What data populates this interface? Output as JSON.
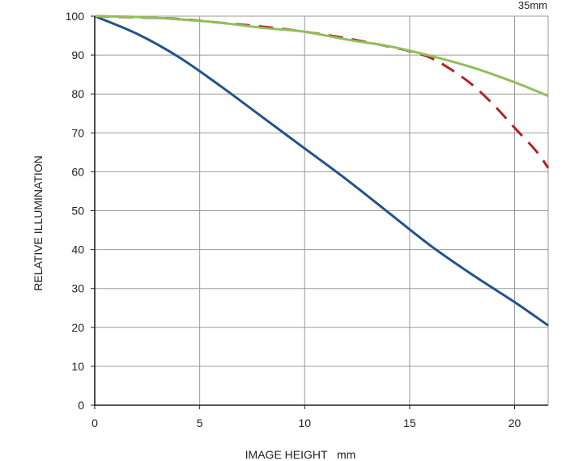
{
  "chart_data": {
    "type": "line",
    "title": "",
    "corner_label": "35mm",
    "xlabel": "IMAGE HEIGHT   mm",
    "ylabel": "RELATIVE ILLUMINATION",
    "xlim": [
      0,
      21.6
    ],
    "ylim": [
      0,
      100
    ],
    "xticks": [
      0,
      5,
      10,
      15,
      20
    ],
    "yticks": [
      0,
      10,
      20,
      30,
      40,
      50,
      60,
      70,
      80,
      90,
      100
    ],
    "grid": true,
    "legend": "none",
    "series": [
      {
        "color": "#23538a",
        "style": "solid",
        "x": [
          0,
          2,
          4,
          6,
          8,
          10,
          12,
          14,
          16,
          18,
          20,
          21.6
        ],
        "y": [
          100,
          95.5,
          89.5,
          82,
          74,
          66,
          58,
          49.5,
          41,
          33.5,
          26.5,
          20.5
        ]
      },
      {
        "color": "#b22222",
        "style": "dashed",
        "x": [
          0,
          2,
          4,
          6,
          8,
          10,
          12,
          14,
          15,
          16,
          17,
          18,
          19,
          20,
          21,
          21.6
        ],
        "y": [
          100,
          99.7,
          99.3,
          98.3,
          97.3,
          96,
          94.3,
          92.2,
          91,
          89.3,
          86.2,
          82.3,
          77.2,
          71.3,
          65.5,
          61
        ]
      },
      {
        "color": "#8fc05a",
        "style": "solid",
        "x": [
          0,
          2,
          4,
          6,
          8,
          10,
          12,
          14,
          16,
          18,
          20,
          21.6
        ],
        "y": [
          100,
          99.8,
          99.2,
          98.3,
          97,
          96,
          94,
          92.3,
          89.8,
          86.8,
          83,
          79.5
        ]
      }
    ]
  }
}
